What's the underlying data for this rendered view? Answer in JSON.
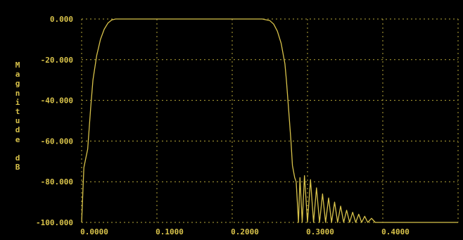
{
  "chart_data": {
    "type": "line",
    "title": "",
    "ylabel": "Magnitude dB",
    "xlabel": "",
    "xlim": [
      0.0,
      0.5
    ],
    "ylim": [
      -100.0,
      0.0
    ],
    "xticks": [
      0.0,
      0.1,
      0.2,
      0.3,
      0.4
    ],
    "xtick_labels": [
      "0.0000",
      "0.1000",
      "0.2000",
      "0.3000",
      "0.4000"
    ],
    "yticks": [
      0.0,
      -20.0,
      -40.0,
      -60.0,
      -80.0,
      -100.0
    ],
    "ytick_labels": [
      "0.000",
      "-20.000",
      "-40.000",
      "-60.000",
      "-80.000",
      "-100.000"
    ],
    "grid": true,
    "colors": {
      "background": "#000000",
      "plot_bg": "#000000",
      "grid": "#b8a83a",
      "curve": "#d8c24a",
      "text": "#d8c24a"
    },
    "series": [
      {
        "x": [
          0.0,
          0.003,
          0.008,
          0.012,
          0.015,
          0.02,
          0.025,
          0.03,
          0.035,
          0.04,
          0.045,
          0.05,
          0.06,
          0.08,
          0.1,
          0.15,
          0.2,
          0.24,
          0.25,
          0.255,
          0.26,
          0.265,
          0.27,
          0.272,
          0.275,
          0.278,
          0.28,
          0.283,
          0.285,
          0.288,
          0.29,
          0.293,
          0.296,
          0.3,
          0.304,
          0.308,
          0.312,
          0.316,
          0.32,
          0.324,
          0.328,
          0.332,
          0.336,
          0.34,
          0.344,
          0.348,
          0.352,
          0.356,
          0.36,
          0.364,
          0.368,
          0.372,
          0.376,
          0.38,
          0.385,
          0.39,
          0.4,
          0.45,
          0.5
        ],
        "y": [
          -100.0,
          -73.0,
          -64.0,
          -44.0,
          -30.0,
          -18.0,
          -10.0,
          -5.0,
          -2.0,
          -0.5,
          0.0,
          0.0,
          0.0,
          0.0,
          0.0,
          0.0,
          0.0,
          0.0,
          -0.8,
          -2.5,
          -6.0,
          -12.0,
          -22.0,
          -30.0,
          -45.0,
          -60.0,
          -72.0,
          -78.0,
          -80.0,
          -100.0,
          -78.0,
          -100.0,
          -77.0,
          -100.0,
          -79.0,
          -100.0,
          -83.0,
          -100.0,
          -86.0,
          -100.0,
          -88.0,
          -100.0,
          -90.0,
          -100.0,
          -92.0,
          -100.0,
          -94.0,
          -100.0,
          -95.0,
          -100.0,
          -96.0,
          -100.0,
          -97.0,
          -100.0,
          -98.0,
          -100.0,
          -100.0,
          -100.0,
          -100.0
        ]
      }
    ]
  }
}
